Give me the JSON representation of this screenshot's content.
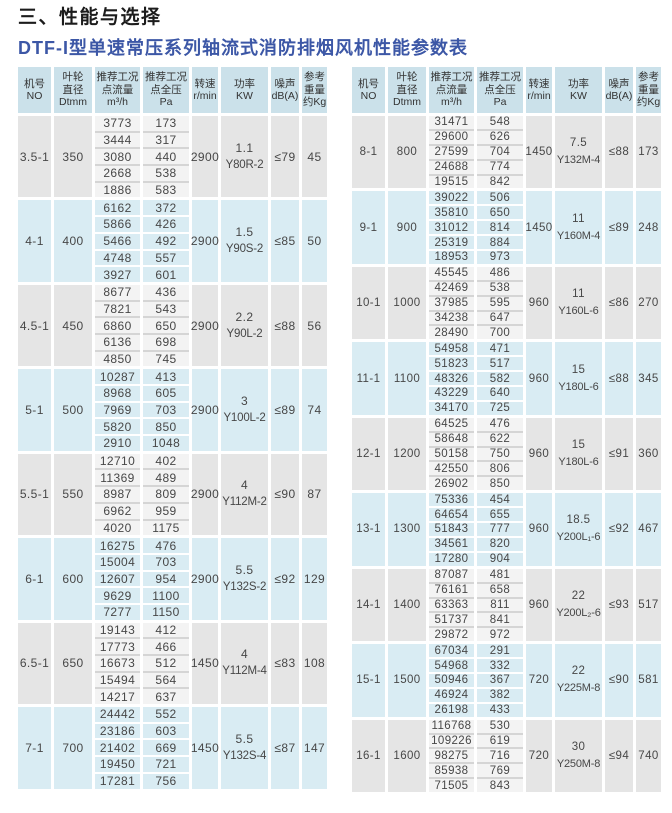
{
  "titles": {
    "section": "三、性能与选择",
    "table": "DTF-I型单速常压系列轴流式消防排烟风机性能参数表"
  },
  "colors": {
    "table_title_blue": "#3c57a6",
    "header_cell_cyan": "#cbe1ea",
    "group_cyan": "#d9ecf3",
    "group_gray": "#e5e5e5",
    "value_cell_light": "#f3f3f3"
  },
  "header_columns": [
    {
      "id": "no",
      "lines": [
        "机号",
        "NO"
      ]
    },
    {
      "id": "diameter",
      "lines": [
        "叶轮",
        "直径",
        "Dtmm"
      ]
    },
    {
      "id": "flow",
      "lines": [
        "推荐工况",
        "点流量",
        "m³/h"
      ]
    },
    {
      "id": "pressure",
      "lines": [
        "推荐工况",
        "点全压",
        "Pa"
      ]
    },
    {
      "id": "speed",
      "lines": [
        "转速",
        "r/min"
      ]
    },
    {
      "id": "power",
      "lines": [
        "功率",
        "KW"
      ]
    },
    {
      "id": "noise",
      "lines": [
        "噪声",
        "dB(A)"
      ]
    },
    {
      "id": "weight",
      "lines": [
        "参考",
        "重量",
        "约Kg"
      ]
    }
  ],
  "left_table": {
    "groups": [
      {
        "no": "3.5-1",
        "diameter": "350",
        "flows": [
          "3773",
          "3444",
          "3080",
          "2668",
          "1886"
        ],
        "pressures": [
          "173",
          "317",
          "440",
          "538",
          "583"
        ],
        "speed": "2900",
        "power_kw": "1.1",
        "motor": "Y80R-2",
        "noise": "≤79",
        "weight": "45"
      },
      {
        "no": "4-1",
        "diameter": "400",
        "flows": [
          "6162",
          "5866",
          "5466",
          "4748",
          "3927"
        ],
        "pressures": [
          "372",
          "426",
          "492",
          "557",
          "601"
        ],
        "speed": "2900",
        "power_kw": "1.5",
        "motor": "Y90S-2",
        "noise": "≤85",
        "weight": "50"
      },
      {
        "no": "4.5-1",
        "diameter": "450",
        "flows": [
          "8677",
          "7821",
          "6860",
          "6136",
          "4850"
        ],
        "pressures": [
          "436",
          "543",
          "650",
          "698",
          "745"
        ],
        "speed": "2900",
        "power_kw": "2.2",
        "motor": "Y90L-2",
        "noise": "≤88",
        "weight": "56"
      },
      {
        "no": "5-1",
        "diameter": "500",
        "flows": [
          "10287",
          "8968",
          "7969",
          "5820",
          "2910"
        ],
        "pressures": [
          "413",
          "605",
          "703",
          "850",
          "1048"
        ],
        "speed": "2900",
        "power_kw": "3",
        "motor": "Y100L-2",
        "noise": "≤89",
        "weight": "74"
      },
      {
        "no": "5.5-1",
        "diameter": "550",
        "flows": [
          "12710",
          "11369",
          "8987",
          "6962",
          "4020"
        ],
        "pressures": [
          "402",
          "489",
          "809",
          "959",
          "1175"
        ],
        "speed": "2900",
        "power_kw": "4",
        "motor": "Y112M-2",
        "noise": "≤90",
        "weight": "87"
      },
      {
        "no": "6-1",
        "diameter": "600",
        "flows": [
          "16275",
          "15004",
          "12607",
          "9629",
          "7277"
        ],
        "pressures": [
          "476",
          "703",
          "954",
          "1100",
          "1150"
        ],
        "speed": "2900",
        "power_kw": "5.5",
        "motor": "Y132S-2",
        "noise": "≤92",
        "weight": "129"
      },
      {
        "no": "6.5-1",
        "diameter": "650",
        "flows": [
          "19143",
          "17773",
          "16673",
          "15494",
          "14217"
        ],
        "pressures": [
          "412",
          "466",
          "512",
          "564",
          "637"
        ],
        "speed": "1450",
        "power_kw": "4",
        "motor": "Y112M-4",
        "noise": "≤83",
        "weight": "108"
      },
      {
        "no": "7-1",
        "diameter": "700",
        "flows": [
          "24442",
          "23186",
          "21402",
          "19450",
          "17281"
        ],
        "pressures": [
          "552",
          "603",
          "669",
          "721",
          "756"
        ],
        "speed": "1450",
        "power_kw": "5.5",
        "motor": "Y132S-4",
        "noise": "≤87",
        "weight": "147"
      }
    ]
  },
  "right_table": {
    "groups": [
      {
        "no": "8-1",
        "diameter": "800",
        "flows": [
          "31471",
          "29600",
          "27599",
          "24688",
          "19515"
        ],
        "pressures": [
          "548",
          "626",
          "704",
          "774",
          "842"
        ],
        "speed": "1450",
        "power_kw": "7.5",
        "motor": "Y132M-4",
        "noise": "≤88",
        "weight": "173"
      },
      {
        "no": "9-1",
        "diameter": "900",
        "flows": [
          "39022",
          "35810",
          "31012",
          "25319",
          "18953"
        ],
        "pressures": [
          "506",
          "650",
          "814",
          "884",
          "973"
        ],
        "speed": "1450",
        "power_kw": "11",
        "motor": "Y160M-4",
        "noise": "≤89",
        "weight": "248"
      },
      {
        "no": "10-1",
        "diameter": "1000",
        "flows": [
          "45545",
          "42469",
          "37985",
          "34238",
          "28490"
        ],
        "pressures": [
          "486",
          "538",
          "595",
          "647",
          "700"
        ],
        "speed": "960",
        "power_kw": "11",
        "motor": "Y160L-6",
        "noise": "≤86",
        "weight": "270"
      },
      {
        "no": "11-1",
        "diameter": "1100",
        "flows": [
          "54958",
          "51823",
          "48326",
          "43229",
          "34170"
        ],
        "pressures": [
          "471",
          "517",
          "582",
          "640",
          "725"
        ],
        "speed": "960",
        "power_kw": "15",
        "motor": "Y180L-6",
        "noise": "≤88",
        "weight": "345"
      },
      {
        "no": "12-1",
        "diameter": "1200",
        "flows": [
          "64525",
          "58648",
          "50158",
          "42550",
          "26902"
        ],
        "pressures": [
          "476",
          "622",
          "750",
          "806",
          "850"
        ],
        "speed": "960",
        "power_kw": "15",
        "motor": "Y180L-6",
        "noise": "≤91",
        "weight": "360"
      },
      {
        "no": "13-1",
        "diameter": "1300",
        "flows": [
          "75336",
          "64654",
          "51843",
          "34561",
          "17280"
        ],
        "pressures": [
          "454",
          "655",
          "777",
          "820",
          "904"
        ],
        "speed": "960",
        "power_kw": "18.5",
        "motor": "Y200L₁-6",
        "noise": "≤92",
        "weight": "467"
      },
      {
        "no": "14-1",
        "diameter": "1400",
        "flows": [
          "87087",
          "76161",
          "63363",
          "51737",
          "29872"
        ],
        "pressures": [
          "481",
          "658",
          "811",
          "841",
          "972"
        ],
        "speed": "960",
        "power_kw": "22",
        "motor": "Y200L₂-6",
        "noise": "≤93",
        "weight": "517"
      },
      {
        "no": "15-1",
        "diameter": "1500",
        "flows": [
          "67034",
          "54968",
          "50946",
          "46924",
          "26198"
        ],
        "pressures": [
          "291",
          "332",
          "367",
          "382",
          "433"
        ],
        "speed": "720",
        "power_kw": "22",
        "motor": "Y225M-8",
        "noise": "≤90",
        "weight": "581"
      },
      {
        "no": "16-1",
        "diameter": "1600",
        "flows": [
          "116768",
          "109226",
          "98275",
          "85938",
          "71505"
        ],
        "pressures": [
          "530",
          "619",
          "716",
          "769",
          "843"
        ],
        "speed": "720",
        "power_kw": "30",
        "motor": "Y250M-8",
        "noise": "≤94",
        "weight": "740"
      }
    ]
  }
}
